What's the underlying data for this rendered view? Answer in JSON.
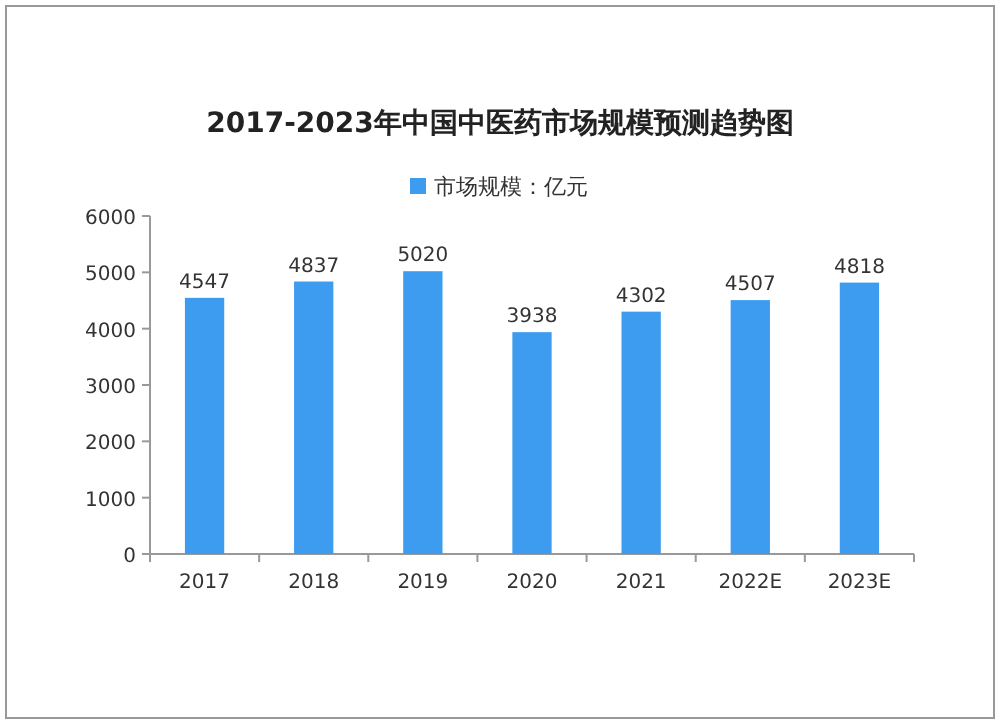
{
  "chart_data": {
    "type": "bar",
    "title": "2017-2023年中国中医药市场规模预测趋势图",
    "categories": [
      "2017",
      "2018",
      "2019",
      "2020",
      "2021",
      "2022E",
      "2023E"
    ],
    "series": [
      {
        "name": "市场规模：亿元",
        "color": "#3d9cf0",
        "values": [
          4547,
          4837,
          5020,
          3938,
          4302,
          4507,
          4818
        ]
      }
    ],
    "ylim": [
      0,
      6000
    ],
    "yticks": [
      0,
      1000,
      2000,
      3000,
      4000,
      5000,
      6000
    ],
    "data_labels": true,
    "legend": "top"
  }
}
